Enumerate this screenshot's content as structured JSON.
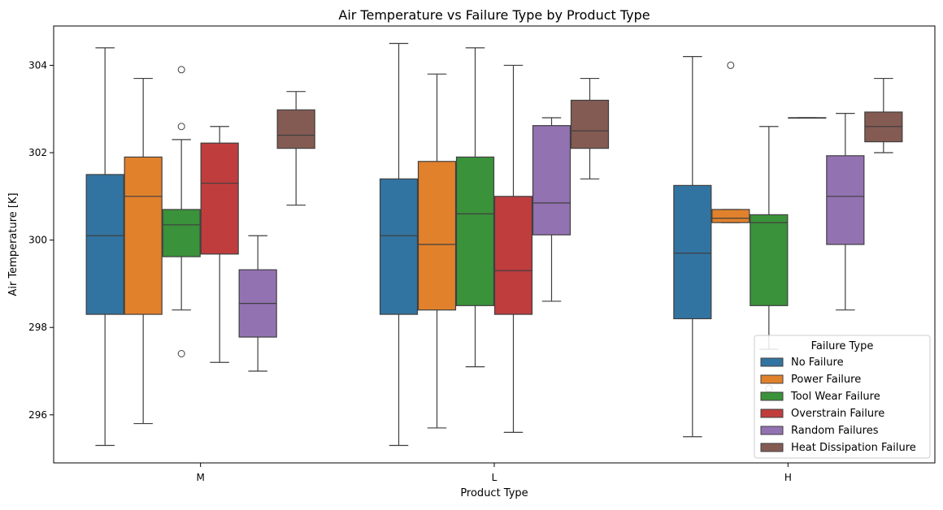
{
  "chart_data": {
    "type": "box",
    "title": "Air Temperature vs Failure Type by Product Type",
    "xlabel": "Product Type",
    "ylabel": "Air Temperature [K]",
    "categories": [
      "M",
      "L",
      "H"
    ],
    "ylim": [
      294.9,
      304.9
    ],
    "yticks": [
      296,
      298,
      300,
      302,
      304
    ],
    "grid": false,
    "legend": {
      "title": "Failure Type",
      "placement": "lower-right",
      "entries": [
        "No Failure",
        "Power Failure",
        "Tool Wear Failure",
        "Overstrain Failure",
        "Random Failures",
        "Heat Dissipation Failure"
      ]
    },
    "series": [
      {
        "name": "No Failure",
        "color": "#3274a1",
        "boxes": [
          {
            "category": "M",
            "min": 295.3,
            "q1": 298.3,
            "median": 300.1,
            "q3": 301.5,
            "max": 304.4,
            "outliers": []
          },
          {
            "category": "L",
            "min": 295.3,
            "q1": 298.3,
            "median": 300.1,
            "q3": 301.4,
            "max": 304.5,
            "outliers": []
          },
          {
            "category": "H",
            "min": 295.5,
            "q1": 298.2,
            "median": 299.7,
            "q3": 301.25,
            "max": 304.2,
            "outliers": []
          }
        ]
      },
      {
        "name": "Power Failure",
        "color": "#e1812c",
        "boxes": [
          {
            "category": "M",
            "min": 295.8,
            "q1": 298.3,
            "median": 301.0,
            "q3": 301.9,
            "max": 303.7,
            "outliers": []
          },
          {
            "category": "L",
            "min": 295.7,
            "q1": 298.4,
            "median": 299.9,
            "q3": 301.8,
            "max": 303.8,
            "outliers": []
          },
          {
            "category": "H",
            "min": 300.4,
            "q1": 300.4,
            "median": 300.5,
            "q3": 300.7,
            "max": 300.7,
            "outliers": [
              304.0
            ]
          }
        ]
      },
      {
        "name": "Tool Wear Failure",
        "color": "#3a923a",
        "boxes": [
          {
            "category": "M",
            "min": 298.4,
            "q1": 299.62,
            "median": 300.35,
            "q3": 300.7,
            "max": 302.3,
            "outliers": [
              297.4,
              302.6,
              303.9
            ]
          },
          {
            "category": "L",
            "min": 297.1,
            "q1": 298.5,
            "median": 300.6,
            "q3": 301.9,
            "max": 304.4,
            "outliers": []
          },
          {
            "category": "H",
            "min": 297.5,
            "q1": 298.5,
            "median": 300.4,
            "q3": 300.58,
            "max": 302.6,
            "outliers": [
              296.6
            ]
          }
        ]
      },
      {
        "name": "Overstrain Failure",
        "color": "#c03d3e",
        "boxes": [
          {
            "category": "M",
            "min": 297.2,
            "q1": 299.68,
            "median": 301.3,
            "q3": 302.22,
            "max": 302.6,
            "outliers": []
          },
          {
            "category": "L",
            "min": 295.6,
            "q1": 298.3,
            "median": 299.3,
            "q3": 301.0,
            "max": 304.0,
            "outliers": []
          },
          {
            "category": "H",
            "min": 302.8,
            "q1": 302.8,
            "median": 302.8,
            "q3": 302.8,
            "max": 302.8,
            "outliers": []
          }
        ]
      },
      {
        "name": "Random Failures",
        "color": "#9372b2",
        "boxes": [
          {
            "category": "M",
            "min": 297.0,
            "q1": 297.78,
            "median": 298.55,
            "q3": 299.32,
            "max": 300.1,
            "outliers": []
          },
          {
            "category": "L",
            "min": 298.6,
            "q1": 300.12,
            "median": 300.85,
            "q3": 302.62,
            "max": 302.8,
            "outliers": []
          },
          {
            "category": "H",
            "min": 298.4,
            "q1": 299.9,
            "median": 301.0,
            "q3": 301.93,
            "max": 302.9,
            "outliers": []
          }
        ]
      },
      {
        "name": "Heat Dissipation Failure",
        "color": "#845b53",
        "boxes": [
          {
            "category": "M",
            "min": 300.8,
            "q1": 302.1,
            "median": 302.4,
            "q3": 302.98,
            "max": 303.4,
            "outliers": []
          },
          {
            "category": "L",
            "min": 301.4,
            "q1": 302.1,
            "median": 302.5,
            "q3": 303.2,
            "max": 303.7,
            "outliers": []
          },
          {
            "category": "H",
            "min": 302.0,
            "q1": 302.25,
            "median": 302.6,
            "q3": 302.93,
            "max": 303.7,
            "outliers": []
          }
        ]
      }
    ]
  }
}
